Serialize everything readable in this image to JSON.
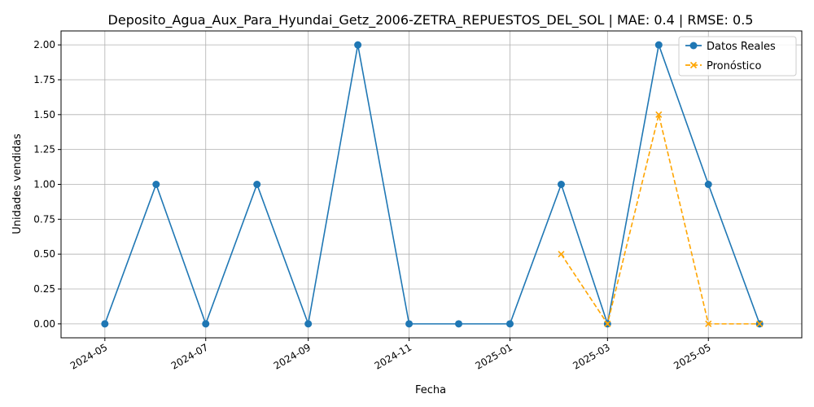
{
  "chart_data": {
    "type": "line",
    "title": "Deposito_Agua_Aux_Para_Hyundai_Getz_2006-ZETRA_REPUESTOS_DEL_SOL | MAE: 0.4 | RMSE: 0.5",
    "xlabel": "Fecha",
    "ylabel": "Unidades vendidas",
    "ylim": [
      -0.1,
      2.1
    ],
    "yticks": [
      "0.00",
      "0.25",
      "0.50",
      "0.75",
      "1.00",
      "1.25",
      "1.50",
      "1.75",
      "2.00"
    ],
    "xticks": [
      "2024-05",
      "2024-07",
      "2024-09",
      "2024-11",
      "2025-01",
      "2025-03",
      "2025-05"
    ],
    "grid": true,
    "legend_position": "top-right",
    "series": [
      {
        "name": "Datos Reales",
        "color": "#1f77b4",
        "style": "solid",
        "marker": "circle",
        "x": [
          "2024-05-01",
          "2024-06-01",
          "2024-07-01",
          "2024-08-01",
          "2024-09-01",
          "2024-10-01",
          "2024-11-01",
          "2024-12-01",
          "2025-01-01",
          "2025-02-01",
          "2025-03-01",
          "2025-04-01",
          "2025-05-01",
          "2025-06-01"
        ],
        "values": [
          0,
          1,
          0,
          1,
          0,
          2,
          0,
          0,
          0,
          1,
          0,
          2,
          1,
          0
        ]
      },
      {
        "name": "Pronóstico",
        "color": "#ffa500",
        "style": "dashed",
        "marker": "x",
        "x": [
          "2025-02-01",
          "2025-03-01",
          "2025-04-01",
          "2025-05-01",
          "2025-06-01"
        ],
        "values": [
          0.5,
          0,
          1.5,
          0,
          0
        ]
      }
    ]
  }
}
